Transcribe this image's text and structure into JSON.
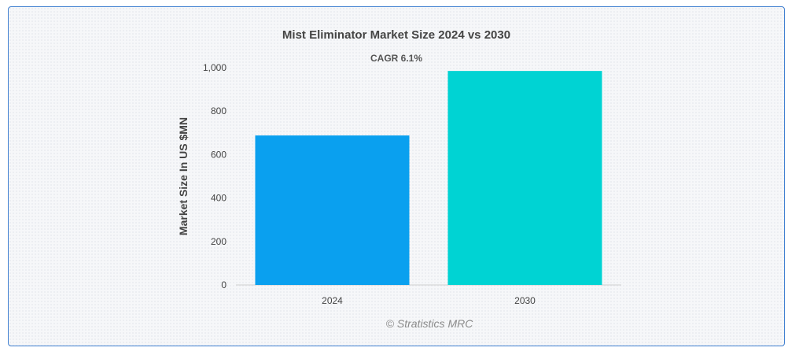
{
  "chart_data": {
    "type": "bar",
    "title": "Mist Eliminator Market Size 2024 vs 2030",
    "subtitle": "CAGR 6.1%",
    "xlabel": "",
    "ylabel": "Market Size In US $MN",
    "categories": [
      "2024",
      "2030"
    ],
    "values": [
      688,
      985
    ],
    "colors": [
      "#0aa0ef",
      "#00d3d3"
    ],
    "ylim": [
      0,
      1000
    ],
    "yticks": [
      0,
      200,
      400,
      600,
      800,
      1000
    ],
    "ytick_labels": [
      "0",
      "200",
      "400",
      "600",
      "800",
      "1,000"
    ],
    "grid": false,
    "legend": "none"
  },
  "credit": "© Stratistics MRC"
}
